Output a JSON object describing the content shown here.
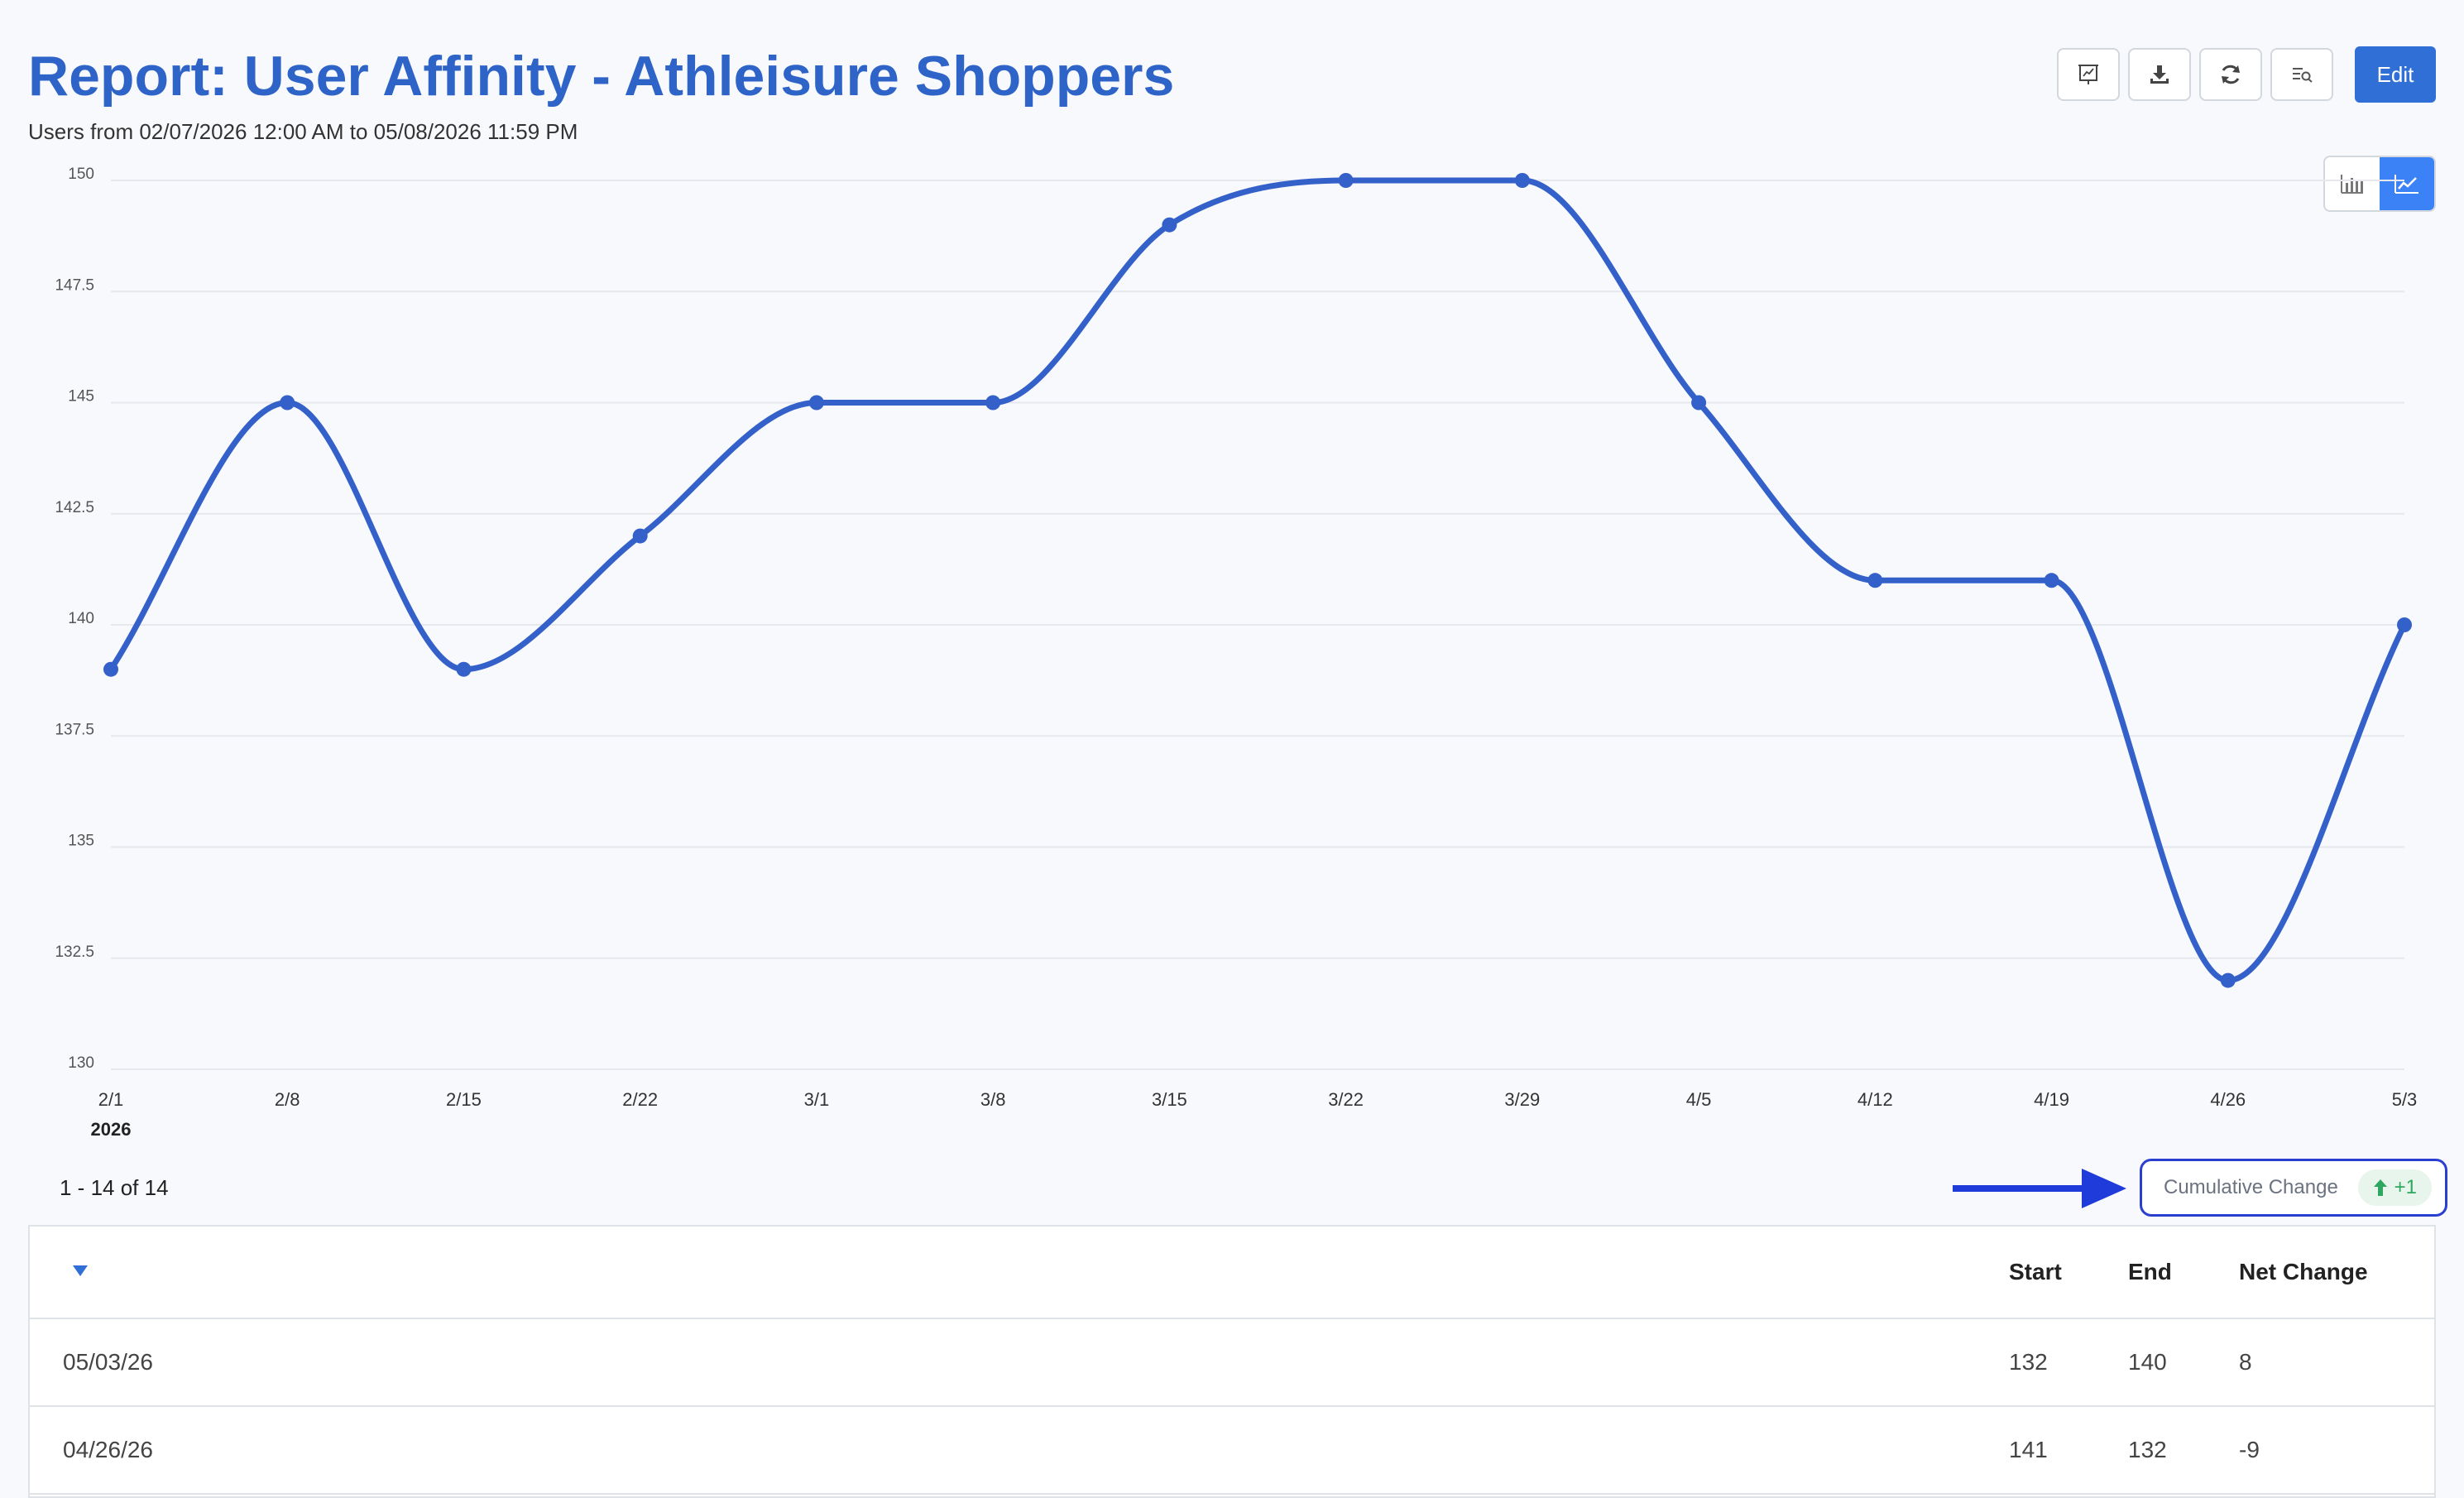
{
  "header": {
    "title": "Report: User Affinity - Athleisure Shoppers",
    "subtitle": "Users from 02/07/2026 12:00 AM to 05/08/2026 11:59 PM"
  },
  "toolbar": {
    "icons": [
      "presentation-icon",
      "download-icon",
      "refresh-icon",
      "search-list-icon"
    ],
    "edit_label": "Edit"
  },
  "view_toggle": {
    "options": [
      "bar-chart-icon",
      "line-chart-icon"
    ],
    "active": "line-chart-icon",
    "active_color": "#3b82f6"
  },
  "chart_data": {
    "type": "line",
    "x": [
      "2/1",
      "2/8",
      "2/15",
      "2/22",
      "3/1",
      "3/8",
      "3/15",
      "3/22",
      "3/29",
      "4/5",
      "4/12",
      "4/19",
      "4/26",
      "5/3"
    ],
    "x_year_label": "2026",
    "series": [
      {
        "values": [
          139,
          145,
          139,
          142,
          145,
          145,
          149,
          150,
          150,
          145,
          141,
          141,
          132,
          140
        ],
        "color": "#3360c9"
      }
    ],
    "yticks": [
      "150",
      "147.5",
      "145",
      "142.5",
      "140",
      "137.5",
      "135",
      "132.5",
      "130"
    ],
    "ylim": [
      130,
      150
    ],
    "grid": true
  },
  "pager": {
    "text": "1 - 14 of 14"
  },
  "cumulative": {
    "label": "Cumulative Change",
    "value": "+1",
    "color": "#2ea860",
    "border_color": "#2a3fd0"
  },
  "table": {
    "columns": [
      "Start",
      "End",
      "Net Change"
    ],
    "rows": [
      {
        "date": "05/03/26",
        "start": "132",
        "end": "140",
        "net": "8"
      },
      {
        "date": "04/26/26",
        "start": "141",
        "end": "132",
        "net": "-9"
      }
    ]
  }
}
